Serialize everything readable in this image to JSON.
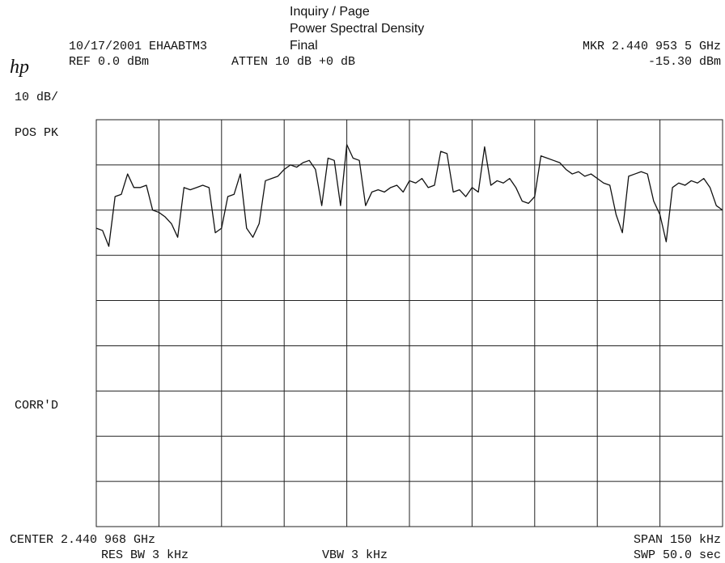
{
  "chart_data": {
    "type": "line",
    "title": "Inquiry / Page",
    "subtitle": "Power Spectral Density",
    "label": "Final",
    "header": {
      "date_id": "10/17/2001 EHAABTM3",
      "marker": "MKR 2.440 953 5 GHz",
      "ref": "REF 0.0 dBm",
      "atten": "ATTEN 10 dB +0 dB",
      "marker_level": "-15.30 dBm"
    },
    "side": {
      "scale": "10 dB/",
      "detector": "POS PK",
      "correction": "CORR'D"
    },
    "footer": {
      "center": "CENTER 2.440 968 GHz",
      "span": "SPAN 150 kHz",
      "rbw": "RES BW 3 kHz",
      "vbw": "VBW 3 kHz",
      "sweep": "SWP 50.0 sec"
    },
    "color": "#111111",
    "ylim": [
      -90,
      0
    ],
    "yticks": [
      -90,
      -80,
      -70,
      -60,
      -50,
      -40,
      -30,
      -20,
      -10,
      0
    ],
    "grid": true,
    "values": [
      -24,
      -24.5,
      -28,
      -17,
      -16.5,
      -12,
      -15,
      -15,
      -14.5,
      -20,
      -20.5,
      -21.5,
      -23,
      -26,
      -15,
      -15.5,
      -15,
      -14.5,
      -15,
      -25,
      -24,
      -17,
      -16.5,
      -12,
      -24,
      -26,
      -23,
      -13.5,
      -13,
      -12.5,
      -11,
      -10,
      -10.5,
      -9.5,
      -9,
      -11,
      -19,
      -8.5,
      -9,
      -19,
      -5.5,
      -8.5,
      -9,
      -19,
      -16,
      -15.5,
      -16,
      -15,
      -14.5,
      -16,
      -13.5,
      -14,
      -13,
      -15,
      -14.5,
      -7,
      -7.5,
      -16,
      -15.5,
      -17,
      -15,
      -16,
      -6,
      -14.5,
      -13.5,
      -14,
      -13,
      -15,
      -18,
      -18.5,
      -17,
      -8,
      -8.5,
      -9,
      -9.5,
      -11,
      -12,
      -11.5,
      -12.5,
      -12,
      -13,
      -14,
      -14.5,
      -21,
      -25,
      -12.5,
      -12,
      -11.5,
      -12,
      -18,
      -21,
      -27,
      -15,
      -14,
      -14.5,
      -13.5,
      -14,
      -13,
      -15,
      -19,
      -20
    ]
  }
}
